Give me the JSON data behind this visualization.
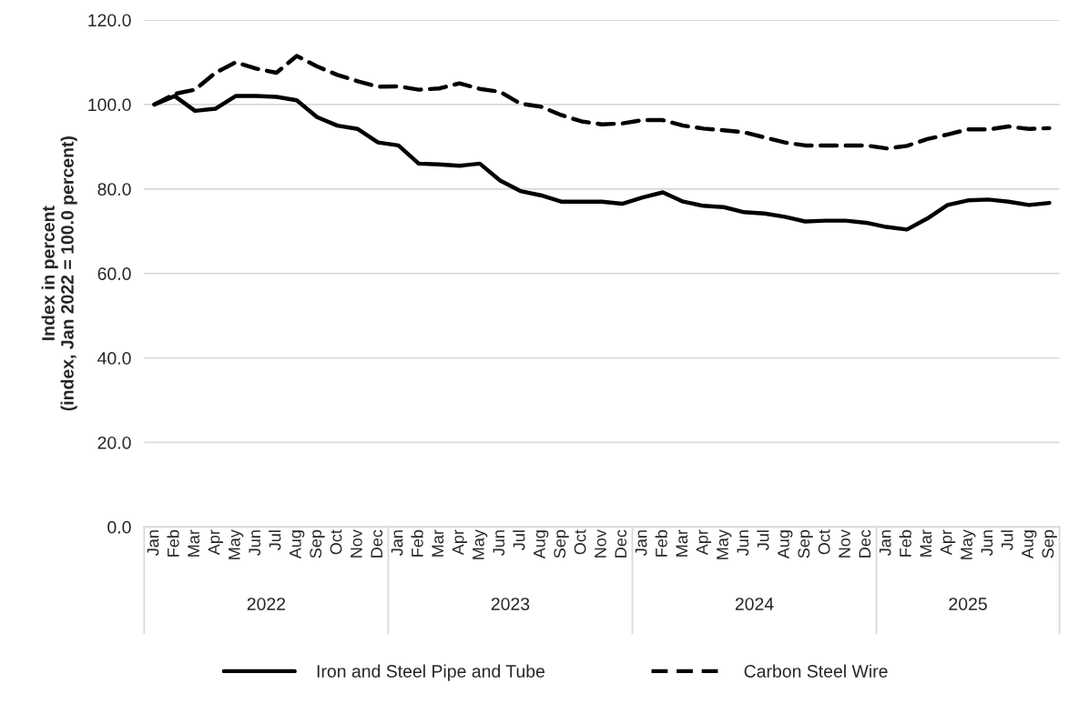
{
  "chart_data": {
    "type": "line",
    "ylabel": "Index in percent\n(index, Jan 2022 = 100.0 percent)",
    "categories": [
      "Jan",
      "Feb",
      "Mar",
      "Apr",
      "May",
      "Jun",
      "Jul",
      "Aug",
      "Sep",
      "Oct",
      "Nov",
      "Dec",
      "Jan",
      "Feb",
      "Mar",
      "Apr",
      "May",
      "Jun",
      "Jul",
      "Aug",
      "Sep",
      "Oct",
      "Nov",
      "Dec",
      "Jan",
      "Feb",
      "Mar",
      "Apr",
      "May",
      "Jun",
      "Jul",
      "Aug",
      "Sep",
      "Oct",
      "Nov",
      "Dec",
      "Jan",
      "Feb",
      "Mar",
      "Apr",
      "May",
      "Jun",
      "Jul",
      "Aug",
      "Sep"
    ],
    "annotations": [
      "2022",
      "2023",
      "2024",
      "2025"
    ],
    "series": [
      {
        "name": "Iron and Steel Pipe and Tube",
        "color": "#000000",
        "line_style": "solid",
        "values": [
          100,
          102,
          98.5,
          99,
          102,
          102,
          101.8,
          101,
          97,
          95,
          94.2,
          91,
          90.3,
          86,
          85.8,
          85.5,
          86,
          82,
          79.5,
          78.5,
          77,
          77,
          77,
          76.5,
          78,
          79.2,
          77,
          76,
          75.7,
          74.5,
          74.2,
          73.4,
          72.3,
          72.5,
          72.5,
          72,
          71,
          70.4,
          73,
          76.2,
          77.3,
          77.5,
          77,
          76.2,
          76.7
        ]
      },
      {
        "name": "Carbon Steel Wire",
        "color": "#000000",
        "line_style": "dashed",
        "values": [
          100,
          102.5,
          103.5,
          107.5,
          110,
          108.5,
          107.5,
          111.5,
          109,
          107,
          105.5,
          104.2,
          104.3,
          103.5,
          103.8,
          105,
          103.7,
          103,
          100.2,
          99.5,
          97.5,
          96,
          95.3,
          95.5,
          96.3,
          96.3,
          95,
          94.3,
          93.9,
          93.4,
          92.2,
          91,
          90.3,
          90.3,
          90.3,
          90.3,
          89.6,
          90.2,
          91.8,
          92.9,
          94.1,
          94.1,
          94.8,
          94.2,
          94.4
        ]
      }
    ],
    "ylim": [
      0,
      120
    ],
    "yticks": [
      {
        "value": 0,
        "label": "0.0"
      },
      {
        "value": 20,
        "label": "20.0"
      },
      {
        "value": 40,
        "label": "40.0"
      },
      {
        "value": 60,
        "label": "60.0"
      },
      {
        "value": 80,
        "label": "80.0"
      },
      {
        "value": 100,
        "label": "100.0"
      },
      {
        "value": 120,
        "label": "120.0"
      }
    ],
    "grid": "y",
    "legend": "bottom",
    "marker": "none"
  }
}
